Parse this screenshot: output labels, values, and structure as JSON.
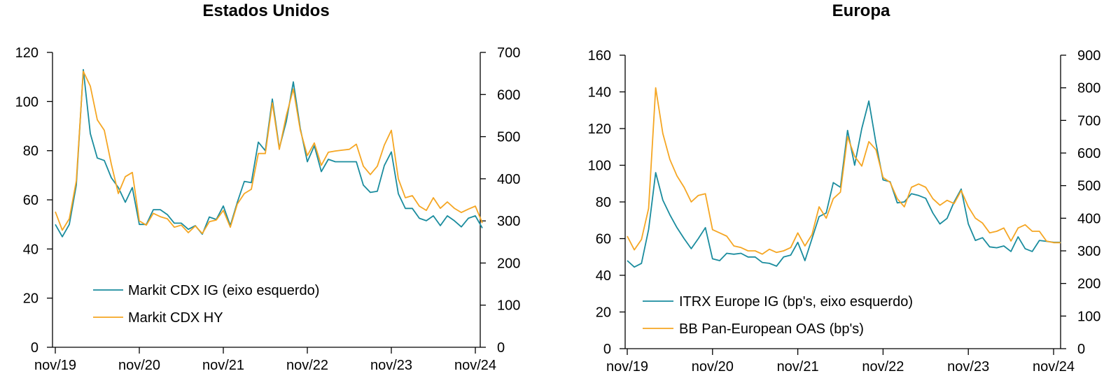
{
  "chart_data": [
    {
      "type": "line",
      "title": "Estados Unidos",
      "x_ticks": [
        "nov/19",
        "nov/20",
        "nov/21",
        "nov/22",
        "nov/23",
        "nov/24"
      ],
      "x_range": [
        "2019-11",
        "2024-11"
      ],
      "ylim_left": [
        0,
        120
      ],
      "yticks_left": [
        0,
        20,
        40,
        60,
        80,
        100,
        120
      ],
      "ylim_right": [
        0,
        700
      ],
      "yticks_right": [
        0,
        100,
        200,
        300,
        400,
        500,
        600,
        700
      ],
      "grid": false,
      "legend_position": "bottom-left",
      "series": [
        {
          "name": "Markit CDX IG (eixo esquerdo)",
          "axis": "left",
          "color": "#1a8c9e",
          "x": [
            "2019-11",
            "2019-12",
            "2020-01",
            "2020-02",
            "2020-03",
            "2020-04",
            "2020-05",
            "2020-06",
            "2020-07",
            "2020-08",
            "2020-09",
            "2020-10",
            "2020-11",
            "2020-12",
            "2021-01",
            "2021-02",
            "2021-03",
            "2021-04",
            "2021-05",
            "2021-06",
            "2021-07",
            "2021-08",
            "2021-09",
            "2021-10",
            "2021-11",
            "2021-12",
            "2022-01",
            "2022-02",
            "2022-03",
            "2022-04",
            "2022-05",
            "2022-06",
            "2022-07",
            "2022-08",
            "2022-09",
            "2022-10",
            "2022-11",
            "2022-12",
            "2023-01",
            "2023-02",
            "2023-03",
            "2023-04",
            "2023-05",
            "2023-06",
            "2023-07",
            "2023-08",
            "2023-09",
            "2023-10",
            "2023-11",
            "2023-12",
            "2024-01",
            "2024-02",
            "2024-03",
            "2024-04",
            "2024-05",
            "2024-06",
            "2024-07",
            "2024-08",
            "2024-09",
            "2024-10",
            "2024-11",
            "2024-12"
          ],
          "values": [
            50,
            45,
            50,
            66,
            113,
            87,
            77,
            76,
            69,
            65,
            59,
            65,
            50,
            50,
            56,
            56,
            54,
            50.5,
            50.5,
            48,
            49.5,
            46,
            53,
            52,
            57.5,
            49.5,
            59,
            67.5,
            67,
            83.5,
            80,
            101,
            81,
            92,
            108,
            89,
            75.5,
            82,
            71.5,
            76.5,
            75.5,
            75.5,
            75.5,
            75.5,
            66,
            63,
            63.5,
            74,
            79.5,
            62.5,
            56.5,
            56.5,
            52.5,
            51.5,
            53.5,
            49.5,
            53.5,
            51.5,
            49,
            52.5,
            53.5,
            48.5
          ]
        },
        {
          "name": "Markit CDX HY",
          "axis": "right",
          "color": "#f5a623",
          "x": [
            "2019-11",
            "2019-12",
            "2020-01",
            "2020-02",
            "2020-03",
            "2020-04",
            "2020-05",
            "2020-06",
            "2020-07",
            "2020-08",
            "2020-09",
            "2020-10",
            "2020-11",
            "2020-12",
            "2021-01",
            "2021-02",
            "2021-03",
            "2021-04",
            "2021-05",
            "2021-06",
            "2021-07",
            "2021-08",
            "2021-09",
            "2021-10",
            "2021-11",
            "2021-12",
            "2022-01",
            "2022-02",
            "2022-03",
            "2022-04",
            "2022-05",
            "2022-06",
            "2022-07",
            "2022-08",
            "2022-09",
            "2022-10",
            "2022-11",
            "2022-12",
            "2023-01",
            "2023-02",
            "2023-03",
            "2023-04",
            "2023-05",
            "2023-06",
            "2023-07",
            "2023-08",
            "2023-09",
            "2023-10",
            "2023-11",
            "2023-12",
            "2024-01",
            "2024-02",
            "2024-03",
            "2024-04",
            "2024-05",
            "2024-06",
            "2024-07",
            "2024-08",
            "2024-09",
            "2024-10",
            "2024-11",
            "2024-12"
          ],
          "values": [
            322,
            278,
            305,
            395,
            655,
            620,
            540,
            515,
            435,
            365,
            405,
            415,
            300,
            290,
            318,
            310,
            305,
            285,
            290,
            272,
            288,
            270,
            298,
            302,
            325,
            285,
            340,
            365,
            375,
            460,
            460,
            580,
            470,
            550,
            613,
            515,
            455,
            485,
            432,
            463,
            466,
            468,
            470,
            482,
            430,
            410,
            430,
            480,
            515,
            400,
            355,
            360,
            335,
            325,
            355,
            330,
            345,
            330,
            320,
            328,
            335,
            295
          ]
        }
      ]
    },
    {
      "type": "line",
      "title": "Europa",
      "x_ticks": [
        "nov/19",
        "nov/20",
        "nov/21",
        "nov/22",
        "nov/23",
        "nov/24"
      ],
      "x_range": [
        "2019-11",
        "2024-11"
      ],
      "ylim_left": [
        0,
        160
      ],
      "yticks_left": [
        0,
        20,
        40,
        60,
        80,
        100,
        120,
        140,
        160
      ],
      "ylim_right": [
        0,
        900
      ],
      "yticks_right": [
        0,
        100,
        200,
        300,
        400,
        500,
        600,
        700,
        800,
        900
      ],
      "grid": false,
      "legend_position": "bottom-left",
      "series": [
        {
          "name": "ITRX Europe IG (bp's, eixo esquerdo)",
          "axis": "left",
          "color": "#1a8c9e",
          "x": [
            "2019-11",
            "2019-12",
            "2020-01",
            "2020-02",
            "2020-03",
            "2020-04",
            "2020-05",
            "2020-06",
            "2020-07",
            "2020-08",
            "2020-09",
            "2020-10",
            "2020-11",
            "2020-12",
            "2021-01",
            "2021-02",
            "2021-03",
            "2021-04",
            "2021-05",
            "2021-06",
            "2021-07",
            "2021-08",
            "2021-09",
            "2021-10",
            "2021-11",
            "2021-12",
            "2022-01",
            "2022-02",
            "2022-03",
            "2022-04",
            "2022-05",
            "2022-06",
            "2022-07",
            "2022-08",
            "2022-09",
            "2022-10",
            "2022-11",
            "2022-12",
            "2023-01",
            "2023-02",
            "2023-03",
            "2023-04",
            "2023-05",
            "2023-06",
            "2023-07",
            "2023-08",
            "2023-09",
            "2023-10",
            "2023-11",
            "2023-12",
            "2024-01",
            "2024-02",
            "2024-03",
            "2024-04",
            "2024-05",
            "2024-06",
            "2024-07",
            "2024-08",
            "2024-09",
            "2024-10",
            "2024-11",
            "2024-12"
          ],
          "values": [
            48,
            44.5,
            46.5,
            65,
            96,
            81,
            73,
            66,
            60,
            54.5,
            60,
            66,
            49,
            48,
            52,
            51.5,
            52,
            50,
            50,
            47,
            46.5,
            45,
            50,
            51,
            58,
            48,
            60,
            72,
            74,
            90.5,
            88,
            119,
            100,
            120,
            135,
            112,
            92,
            91,
            79.5,
            80,
            84.5,
            83.5,
            82,
            74,
            68,
            71,
            80,
            87,
            68,
            59,
            60.5,
            55.5,
            55,
            56,
            53,
            61,
            54.5,
            53,
            59,
            58.5,
            58,
            58
          ]
        },
        {
          "name": "BB Pan-European OAS (bp's)",
          "axis": "right",
          "color": "#f5a623",
          "x": [
            "2019-11",
            "2019-12",
            "2020-01",
            "2020-02",
            "2020-03",
            "2020-04",
            "2020-05",
            "2020-06",
            "2020-07",
            "2020-08",
            "2020-09",
            "2020-10",
            "2020-11",
            "2020-12",
            "2021-01",
            "2021-02",
            "2021-03",
            "2021-04",
            "2021-05",
            "2021-06",
            "2021-07",
            "2021-08",
            "2021-09",
            "2021-10",
            "2021-11",
            "2021-12",
            "2022-01",
            "2022-02",
            "2022-03",
            "2022-04",
            "2022-05",
            "2022-06",
            "2022-07",
            "2022-08",
            "2022-09",
            "2022-10",
            "2022-11",
            "2022-12",
            "2023-01",
            "2023-02",
            "2023-03",
            "2023-04",
            "2023-05",
            "2023-06",
            "2023-07",
            "2023-08",
            "2023-09",
            "2023-10",
            "2023-11",
            "2023-12",
            "2024-01",
            "2024-02",
            "2024-03",
            "2024-04",
            "2024-05",
            "2024-06",
            "2024-07",
            "2024-08",
            "2024-09",
            "2024-10",
            "2024-11",
            "2024-12"
          ],
          "values": [
            345,
            303,
            335,
            430,
            800,
            660,
            580,
            530,
            495,
            450,
            470,
            475,
            365,
            355,
            345,
            315,
            310,
            300,
            300,
            290,
            305,
            295,
            300,
            310,
            355,
            315,
            350,
            435,
            400,
            460,
            480,
            650,
            590,
            560,
            635,
            610,
            525,
            510,
            460,
            435,
            495,
            505,
            495,
            460,
            440,
            455,
            445,
            485,
            435,
            400,
            385,
            355,
            360,
            370,
            330,
            370,
            380,
            360,
            360,
            330,
            325,
            325
          ]
        }
      ]
    }
  ]
}
